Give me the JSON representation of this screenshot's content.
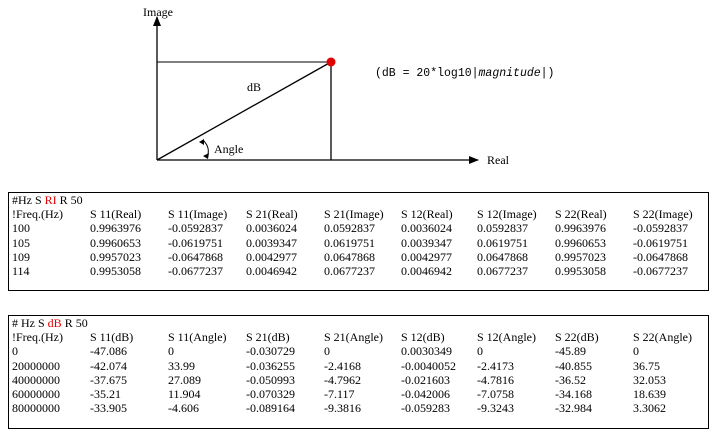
{
  "diagram": {
    "y_axis_label": "Image",
    "x_axis_label": "Real",
    "hypotenuse_label": "dB",
    "angle_label": "Angle",
    "formula_prefix": "(dB = 20*log10|",
    "formula_italic": "magnitude",
    "formula_suffix": "|)",
    "point_color": "#e00000"
  },
  "table_ri": {
    "header_pre": "#Hz S ",
    "header_highlight": "RI",
    "header_post": " R 50",
    "columns": [
      "!Freq.(Hz)",
      "S 11(Real)",
      "S 11(Image)",
      "S 21(Real)",
      "S 21(Image)",
      "S 12(Real)",
      "S 12(Image)",
      "S 22(Real)",
      "S 22(Image)"
    ],
    "rows": [
      [
        "100",
        "0.9963976",
        "-0.0592837",
        "0.0036024",
        "0.0592837",
        "0.0036024",
        "0.0592837",
        "0.9963976",
        "-0.0592837"
      ],
      [
        "105",
        "0.9960653",
        "-0.0619751",
        "0.0039347",
        "0.0619751",
        "0.0039347",
        "0.0619751",
        "0.9960653",
        "-0.0619751"
      ],
      [
        "109",
        "0.9957023",
        "-0.0647868",
        "0.0042977",
        "0.0647868",
        "0.0042977",
        "0.0647868",
        "0.9957023",
        "-0.0647868"
      ],
      [
        "114",
        "0.9953058",
        "-0.0677237",
        "0.0046942",
        "0.0677237",
        "0.0046942",
        "0.0677237",
        "0.9953058",
        "-0.0677237"
      ]
    ]
  },
  "table_db": {
    "header_pre": "# Hz S ",
    "header_highlight": "dB",
    "header_post": " R 50",
    "columns": [
      "!Freq.(Hz)",
      "S 11(dB)",
      "S 11(Angle)",
      "S 21(dB)",
      "S 21(Angle)",
      "S 12(dB)",
      "S 12(Angle)",
      "S 22(dB)",
      "S 22(Angle)"
    ],
    "rows": [
      [
        "0",
        "-47.086",
        "0",
        "-0.030729",
        "0",
        "0.0030349",
        "0",
        "-45.89",
        "0"
      ],
      [
        "20000000",
        "-42.074",
        "33.99",
        "-0.036255",
        "-2.4168",
        "-0.0040052",
        "-2.4173",
        "-40.855",
        "36.75"
      ],
      [
        "40000000",
        "-37.675",
        "27.089",
        "-0.050993",
        "-4.7962",
        "-0.021603",
        "-4.7816",
        "-36.52",
        "32.053"
      ],
      [
        "60000000",
        "-35.21",
        "11.904",
        "-0.070329",
        "-7.117",
        "-0.042006",
        "-7.0758",
        "-34.168",
        "18.639"
      ],
      [
        "80000000",
        "-33.905",
        "-4.606",
        "-0.089164",
        "-9.3816",
        "-0.059283",
        "-9.3243",
        "-32.984",
        "3.3062"
      ]
    ]
  }
}
